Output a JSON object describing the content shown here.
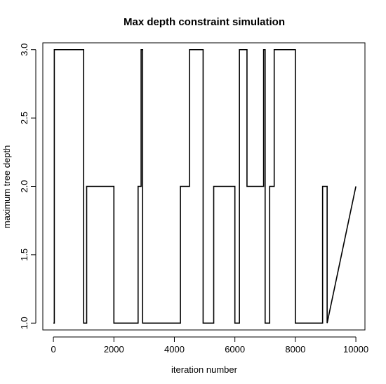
{
  "chart_data": {
    "type": "line",
    "title": "Max depth constraint simulation",
    "xlabel": "iteration number",
    "ylabel": "maximum tree depth",
    "xlim": [
      -350,
      10300
    ],
    "ylim": [
      0.95,
      3.05
    ],
    "xticks": [
      0,
      2000,
      4000,
      6000,
      8000,
      10000
    ],
    "xtick_labels": [
      "0",
      "2000",
      "4000",
      "6000",
      "8000",
      "10000"
    ],
    "yticks": [
      1.0,
      1.5,
      2.0,
      2.5,
      3.0
    ],
    "ytick_labels": [
      "1.0",
      "1.5",
      "2.0",
      "2.5",
      "3.0"
    ],
    "grid": false,
    "series": [
      {
        "x": [
          0,
          30,
          30,
          1000,
          1000,
          1100,
          1100,
          2000,
          2000,
          2800,
          2800,
          2900,
          2900,
          2950,
          2950,
          4200,
          4200,
          4500,
          4500,
          4950,
          4950,
          5300,
          5300,
          6000,
          6000,
          6150,
          6150,
          6400,
          6400,
          6950,
          6950,
          7000,
          7000,
          7150,
          7150,
          7300,
          7300,
          8000,
          8000,
          8900,
          8900,
          9050,
          9050,
          10000
        ],
        "y": [
          1,
          1,
          3,
          3,
          1,
          1,
          2,
          2,
          1,
          1,
          2,
          2,
          3,
          3,
          1,
          1,
          2,
          2,
          3,
          3,
          1,
          1,
          2,
          2,
          1,
          1,
          3,
          3,
          2,
          2,
          3,
          3,
          1,
          1,
          2,
          2,
          3,
          3,
          1,
          1,
          2,
          2,
          1,
          2
        ]
      }
    ]
  }
}
